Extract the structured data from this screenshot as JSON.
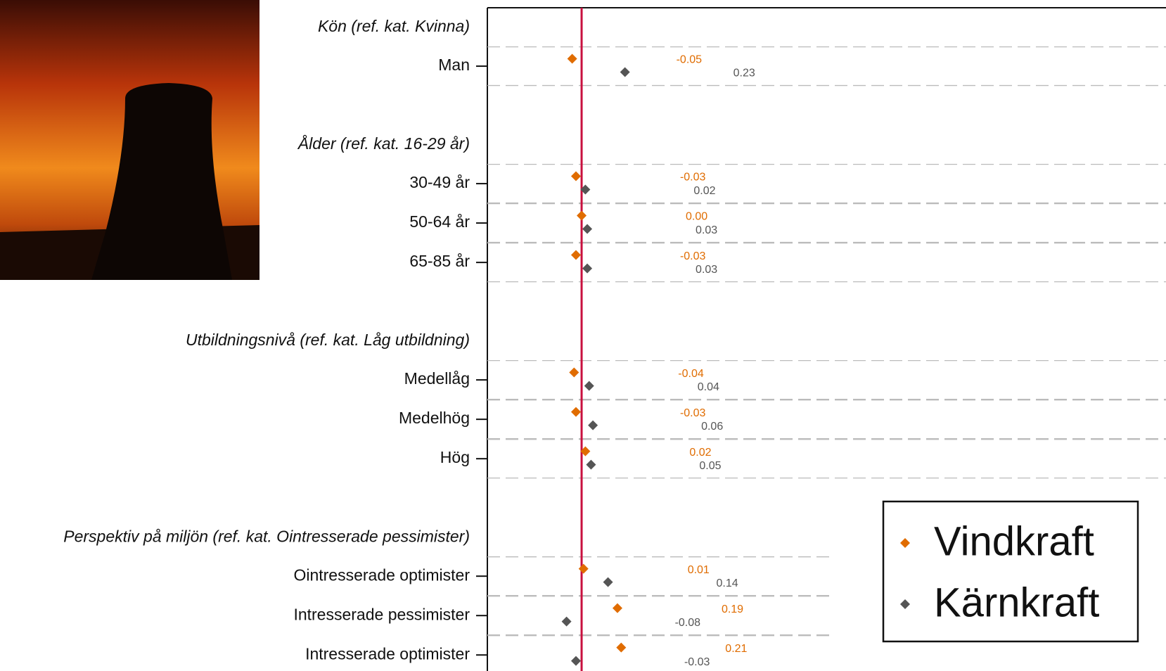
{
  "chart_data": {
    "type": "dot",
    "groups": [
      {
        "title": "Kön (ref. kat. Kvinna)",
        "categories": [
          "Man"
        ]
      },
      {
        "title": "Ålder (ref. kat. 16-29 år)",
        "categories": [
          "30-49 år",
          "50-64 år",
          "65-85 år"
        ]
      },
      {
        "title": "Utbildningsnivå (ref. kat. Låg utbildning)",
        "categories": [
          "Medellåg",
          "Medelhög",
          "Hög"
        ]
      },
      {
        "title": "Perspektiv på miljön (ref. kat. Ointresserade pessimister)",
        "categories": [
          "Ointresserade optimister",
          "Intresserade pessimister",
          "Intresserade optimister"
        ]
      }
    ],
    "series": [
      {
        "name": "Vindkraft",
        "color": "#e06c00",
        "values": [
          -0.05,
          -0.03,
          0.0,
          -0.03,
          -0.04,
          -0.03,
          0.02,
          0.01,
          0.19,
          0.21
        ],
        "value_labels": [
          "-0.05",
          "-0.03",
          "0.00",
          "-0.03",
          "-0.04",
          "-0.03",
          "0.02",
          "0.01",
          "0.19",
          "0.21"
        ]
      },
      {
        "name": "Kärnkraft",
        "color": "#555555",
        "values": [
          0.23,
          0.02,
          0.03,
          0.03,
          0.04,
          0.06,
          0.05,
          0.14,
          -0.08,
          -0.03
        ],
        "value_labels": [
          "0.23",
          "0.02",
          "0.03",
          "0.03",
          "0.04",
          "0.06",
          "0.05",
          "0.14",
          "-0.08",
          "-0.03"
        ]
      }
    ],
    "xlim": [
      -0.5,
      3.1
    ],
    "ref_line": 0,
    "ref_color": "#c8103e",
    "legend": "bottom right"
  }
}
